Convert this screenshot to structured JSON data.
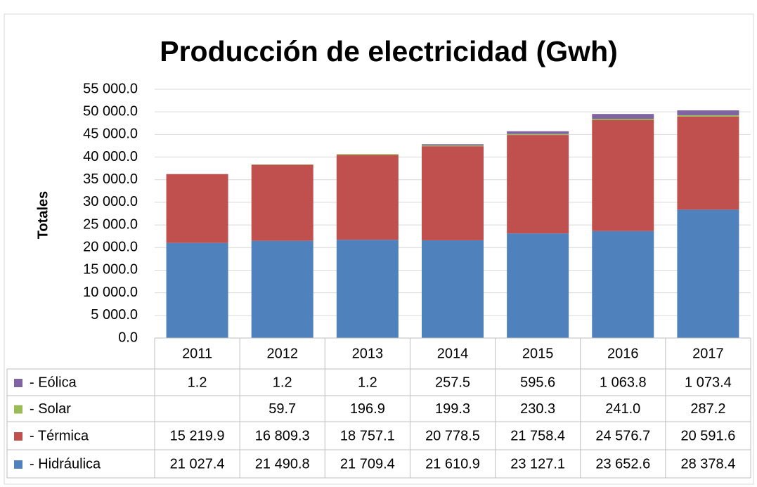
{
  "chart_data": {
    "type": "stacked_bar",
    "title": "Producción de electricidad (Gwh)",
    "y_label": "Totales",
    "categories": [
      "2011",
      "2012",
      "2013",
      "2014",
      "2015",
      "2016",
      "2017"
    ],
    "series": [
      {
        "name": "- Eólica",
        "color": "#8064a2",
        "values": [
          1.2,
          1.2,
          1.2,
          257.5,
          595.6,
          1063.8,
          1073.4
        ],
        "value_labels": [
          "1.2",
          "1.2",
          "1.2",
          "257.5",
          "595.6",
          "1 063.8",
          "1 073.4"
        ]
      },
      {
        "name": "- Solar",
        "color": "#9bbb59",
        "values": [
          null,
          59.7,
          196.9,
          199.3,
          230.3,
          241.0,
          287.2
        ],
        "value_labels": [
          null,
          "59.7",
          "196.9",
          "199.3",
          "230.3",
          "241.0",
          "287.2"
        ]
      },
      {
        "name": "- Térmica",
        "color": "#c0504d",
        "values": [
          15219.9,
          16809.3,
          18757.1,
          20778.5,
          21758.4,
          24576.7,
          20591.6
        ],
        "value_labels": [
          "15 219.9",
          "16 809.3",
          "18 757.1",
          "20 778.5",
          "21 758.4",
          "24 576.7",
          "20 591.6"
        ]
      },
      {
        "name": "- Hidráulica",
        "color": "#4f81bd",
        "values": [
          21027.4,
          21490.8,
          21709.4,
          21610.9,
          23127.1,
          23652.6,
          28378.4
        ],
        "value_labels": [
          "21 027.4",
          "21 490.8",
          "21 709.4",
          "21 610.9",
          "23 127.1",
          "23 652.6",
          "28 378.4"
        ]
      }
    ],
    "ylim": [
      0,
      55000
    ],
    "yticks": [
      {
        "value": 0,
        "label": "0.0"
      },
      {
        "value": 5000,
        "label": "5 000.0"
      },
      {
        "value": 10000,
        "label": "10 000.0"
      },
      {
        "value": 15000,
        "label": "15 000.0"
      },
      {
        "value": 20000,
        "label": "20 000.0"
      },
      {
        "value": 25000,
        "label": "25 000.0"
      },
      {
        "value": 30000,
        "label": "30 000.0"
      },
      {
        "value": 35000,
        "label": "35 000.0"
      },
      {
        "value": 40000,
        "label": "40 000.0"
      },
      {
        "value": 45000,
        "label": "45 000.0"
      },
      {
        "value": 50000,
        "label": "50 000.0"
      },
      {
        "value": 55000,
        "label": "55 000.0"
      }
    ],
    "grid": true
  }
}
